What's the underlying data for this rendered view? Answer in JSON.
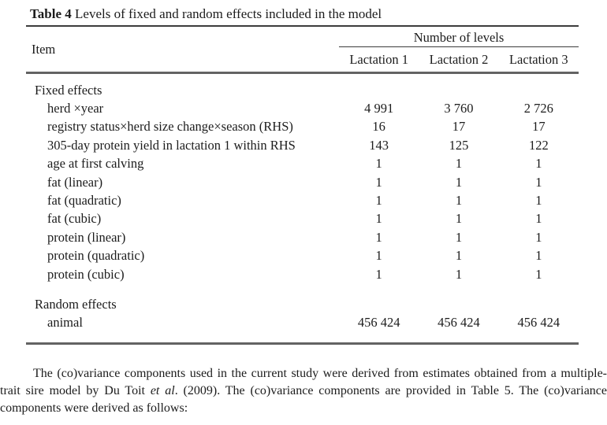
{
  "caption": {
    "label": "Table 4",
    "text": "Levels of fixed and random effects included in the model"
  },
  "table": {
    "header": {
      "item": "Item",
      "group": "Number of levels",
      "columns": [
        "Lactation 1",
        "Lactation 2",
        "Lactation 3"
      ]
    },
    "sections": [
      {
        "title": "Fixed effects",
        "rows": [
          {
            "label": "herd ×year",
            "values": [
              "4 991",
              "3 760",
              "2 726"
            ]
          },
          {
            "label": "registry status×herd size change×season (RHS)",
            "values": [
              "16",
              "17",
              "17"
            ]
          },
          {
            "label": "305-day protein yield in lactation 1 within RHS",
            "values": [
              "143",
              "125",
              "122"
            ]
          },
          {
            "label": "age at first calving",
            "values": [
              "1",
              "1",
              "1"
            ]
          },
          {
            "label": "fat (linear)",
            "values": [
              "1",
              "1",
              "1"
            ]
          },
          {
            "label": "fat (quadratic)",
            "values": [
              "1",
              "1",
              "1"
            ]
          },
          {
            "label": "fat (cubic)",
            "values": [
              "1",
              "1",
              "1"
            ]
          },
          {
            "label": "protein (linear)",
            "values": [
              "1",
              "1",
              "1"
            ]
          },
          {
            "label": "protein (quadratic)",
            "values": [
              "1",
              "1",
              "1"
            ]
          },
          {
            "label": "protein (cubic)",
            "values": [
              "1",
              "1",
              "1"
            ]
          }
        ]
      },
      {
        "title": "Random effects",
        "rows": [
          {
            "label": "animal",
            "values": [
              "456 424",
              "456 424",
              "456 424"
            ]
          }
        ]
      }
    ]
  },
  "paragraph": {
    "part1": "The (co)variance components used in the current study were derived from estimates obtained from a multiple-trait sire model by Du Toit ",
    "italic": "et al",
    "part2": ". (2009). The (co)variance components are provided in Table 5. The (co)variance components were derived as follows:"
  },
  "colors": {
    "text": "#1c1c1c",
    "rule_thin": "#3c3c3c",
    "rule_heavy": "#636363",
    "background": "#ffffff"
  }
}
